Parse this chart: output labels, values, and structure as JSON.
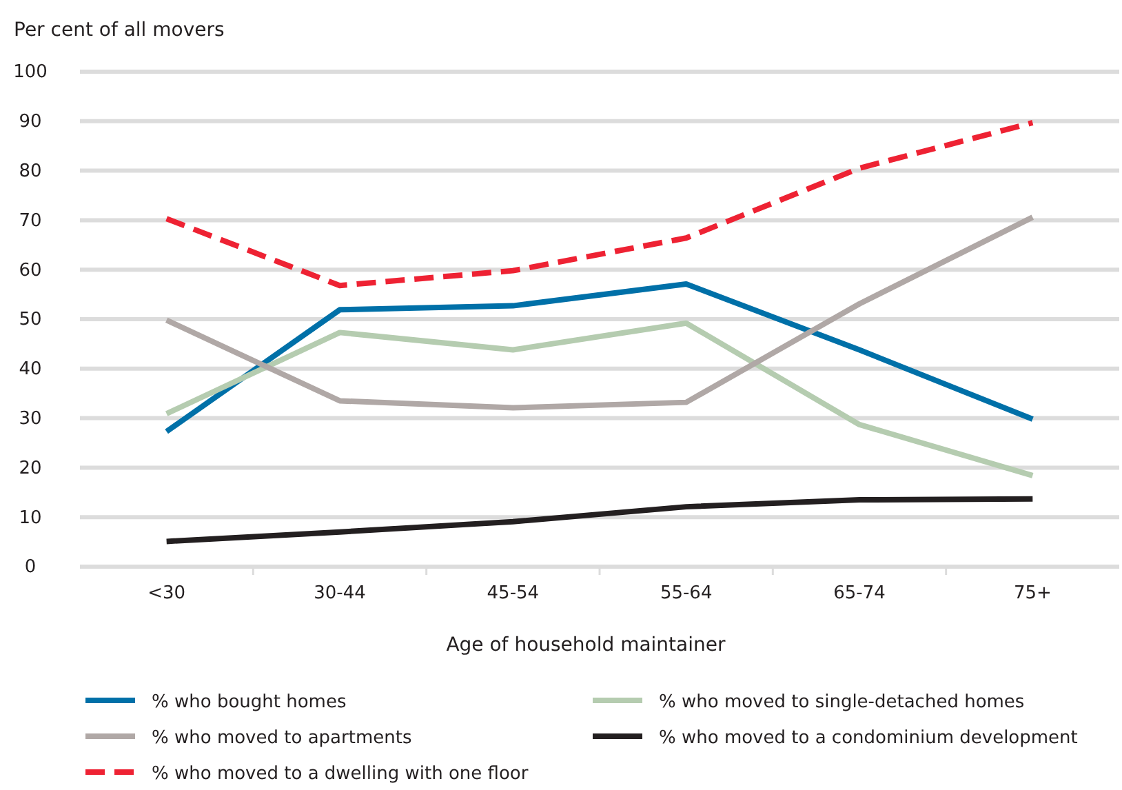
{
  "chart_data": {
    "type": "line",
    "ylabel": "Per cent of all movers",
    "xlabel": "Age of household maintainer",
    "categories": [
      "<30",
      "30-44",
      "45-54",
      "55-64",
      "65-74",
      "75+"
    ],
    "ylim": [
      0,
      100
    ],
    "yticks": [
      0,
      10,
      20,
      30,
      40,
      50,
      60,
      70,
      80,
      90,
      100
    ],
    "grid": "y",
    "legend": "bottom",
    "marker": "none",
    "series": [
      {
        "name": "% who bought homes",
        "color": "#0070a8",
        "values": [
          27.3,
          51.9,
          52.7,
          57.1,
          43.8,
          29.8
        ]
      },
      {
        "name": "% who moved to single-detached homes",
        "color": "#b5ccb0",
        "values": [
          30.9,
          47.3,
          43.8,
          49.2,
          28.7,
          18.4
        ]
      },
      {
        "name": "% who moved to apartments",
        "color": "#b0a8a6",
        "values": [
          49.8,
          33.5,
          32.1,
          33.2,
          53.1,
          70.6
        ]
      },
      {
        "name": "% who moved to a condominium development",
        "color": "#231f20",
        "values": [
          5.1,
          7.0,
          9.1,
          12.1,
          13.5,
          13.7
        ]
      },
      {
        "name": "% who moved to a dwelling with one floor",
        "color": "#ee2233",
        "line_style": "dashed",
        "values": [
          70.3,
          56.8,
          59.8,
          66.4,
          80.5,
          89.7
        ]
      }
    ]
  }
}
